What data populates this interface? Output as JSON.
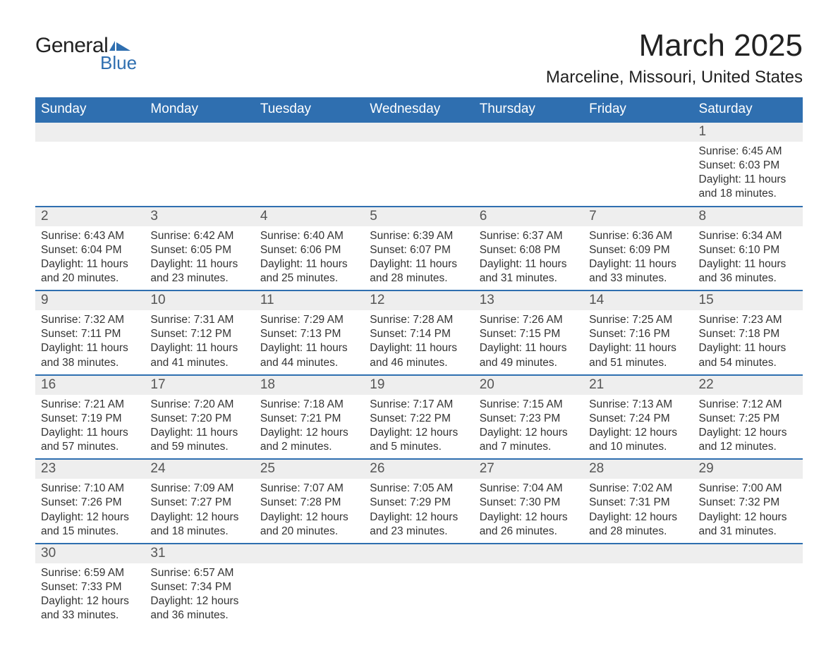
{
  "logo": {
    "text1": "General",
    "text2": "Blue",
    "flag_color": "#2f6fb0"
  },
  "title": "March 2025",
  "location": "Marceline, Missouri, United States",
  "weekday_headers": [
    "Sunday",
    "Monday",
    "Tuesday",
    "Wednesday",
    "Thursday",
    "Friday",
    "Saturday"
  ],
  "colors": {
    "header_bg": "#2f6fb0",
    "header_text": "#ffffff",
    "daynum_bg": "#eeeeee",
    "row_border": "#2f6fb0",
    "body_text": "#333333"
  },
  "weeks": [
    [
      {
        "empty": true
      },
      {
        "empty": true
      },
      {
        "empty": true
      },
      {
        "empty": true
      },
      {
        "empty": true
      },
      {
        "empty": true
      },
      {
        "day": "1",
        "sunrise": "Sunrise: 6:45 AM",
        "sunset": "Sunset: 6:03 PM",
        "daylight1": "Daylight: 11 hours",
        "daylight2": "and 18 minutes."
      }
    ],
    [
      {
        "day": "2",
        "sunrise": "Sunrise: 6:43 AM",
        "sunset": "Sunset: 6:04 PM",
        "daylight1": "Daylight: 11 hours",
        "daylight2": "and 20 minutes."
      },
      {
        "day": "3",
        "sunrise": "Sunrise: 6:42 AM",
        "sunset": "Sunset: 6:05 PM",
        "daylight1": "Daylight: 11 hours",
        "daylight2": "and 23 minutes."
      },
      {
        "day": "4",
        "sunrise": "Sunrise: 6:40 AM",
        "sunset": "Sunset: 6:06 PM",
        "daylight1": "Daylight: 11 hours",
        "daylight2": "and 25 minutes."
      },
      {
        "day": "5",
        "sunrise": "Sunrise: 6:39 AM",
        "sunset": "Sunset: 6:07 PM",
        "daylight1": "Daylight: 11 hours",
        "daylight2": "and 28 minutes."
      },
      {
        "day": "6",
        "sunrise": "Sunrise: 6:37 AM",
        "sunset": "Sunset: 6:08 PM",
        "daylight1": "Daylight: 11 hours",
        "daylight2": "and 31 minutes."
      },
      {
        "day": "7",
        "sunrise": "Sunrise: 6:36 AM",
        "sunset": "Sunset: 6:09 PM",
        "daylight1": "Daylight: 11 hours",
        "daylight2": "and 33 minutes."
      },
      {
        "day": "8",
        "sunrise": "Sunrise: 6:34 AM",
        "sunset": "Sunset: 6:10 PM",
        "daylight1": "Daylight: 11 hours",
        "daylight2": "and 36 minutes."
      }
    ],
    [
      {
        "day": "9",
        "sunrise": "Sunrise: 7:32 AM",
        "sunset": "Sunset: 7:11 PM",
        "daylight1": "Daylight: 11 hours",
        "daylight2": "and 38 minutes."
      },
      {
        "day": "10",
        "sunrise": "Sunrise: 7:31 AM",
        "sunset": "Sunset: 7:12 PM",
        "daylight1": "Daylight: 11 hours",
        "daylight2": "and 41 minutes."
      },
      {
        "day": "11",
        "sunrise": "Sunrise: 7:29 AM",
        "sunset": "Sunset: 7:13 PM",
        "daylight1": "Daylight: 11 hours",
        "daylight2": "and 44 minutes."
      },
      {
        "day": "12",
        "sunrise": "Sunrise: 7:28 AM",
        "sunset": "Sunset: 7:14 PM",
        "daylight1": "Daylight: 11 hours",
        "daylight2": "and 46 minutes."
      },
      {
        "day": "13",
        "sunrise": "Sunrise: 7:26 AM",
        "sunset": "Sunset: 7:15 PM",
        "daylight1": "Daylight: 11 hours",
        "daylight2": "and 49 minutes."
      },
      {
        "day": "14",
        "sunrise": "Sunrise: 7:25 AM",
        "sunset": "Sunset: 7:16 PM",
        "daylight1": "Daylight: 11 hours",
        "daylight2": "and 51 minutes."
      },
      {
        "day": "15",
        "sunrise": "Sunrise: 7:23 AM",
        "sunset": "Sunset: 7:18 PM",
        "daylight1": "Daylight: 11 hours",
        "daylight2": "and 54 minutes."
      }
    ],
    [
      {
        "day": "16",
        "sunrise": "Sunrise: 7:21 AM",
        "sunset": "Sunset: 7:19 PM",
        "daylight1": "Daylight: 11 hours",
        "daylight2": "and 57 minutes."
      },
      {
        "day": "17",
        "sunrise": "Sunrise: 7:20 AM",
        "sunset": "Sunset: 7:20 PM",
        "daylight1": "Daylight: 11 hours",
        "daylight2": "and 59 minutes."
      },
      {
        "day": "18",
        "sunrise": "Sunrise: 7:18 AM",
        "sunset": "Sunset: 7:21 PM",
        "daylight1": "Daylight: 12 hours",
        "daylight2": "and 2 minutes."
      },
      {
        "day": "19",
        "sunrise": "Sunrise: 7:17 AM",
        "sunset": "Sunset: 7:22 PM",
        "daylight1": "Daylight: 12 hours",
        "daylight2": "and 5 minutes."
      },
      {
        "day": "20",
        "sunrise": "Sunrise: 7:15 AM",
        "sunset": "Sunset: 7:23 PM",
        "daylight1": "Daylight: 12 hours",
        "daylight2": "and 7 minutes."
      },
      {
        "day": "21",
        "sunrise": "Sunrise: 7:13 AM",
        "sunset": "Sunset: 7:24 PM",
        "daylight1": "Daylight: 12 hours",
        "daylight2": "and 10 minutes."
      },
      {
        "day": "22",
        "sunrise": "Sunrise: 7:12 AM",
        "sunset": "Sunset: 7:25 PM",
        "daylight1": "Daylight: 12 hours",
        "daylight2": "and 12 minutes."
      }
    ],
    [
      {
        "day": "23",
        "sunrise": "Sunrise: 7:10 AM",
        "sunset": "Sunset: 7:26 PM",
        "daylight1": "Daylight: 12 hours",
        "daylight2": "and 15 minutes."
      },
      {
        "day": "24",
        "sunrise": "Sunrise: 7:09 AM",
        "sunset": "Sunset: 7:27 PM",
        "daylight1": "Daylight: 12 hours",
        "daylight2": "and 18 minutes."
      },
      {
        "day": "25",
        "sunrise": "Sunrise: 7:07 AM",
        "sunset": "Sunset: 7:28 PM",
        "daylight1": "Daylight: 12 hours",
        "daylight2": "and 20 minutes."
      },
      {
        "day": "26",
        "sunrise": "Sunrise: 7:05 AM",
        "sunset": "Sunset: 7:29 PM",
        "daylight1": "Daylight: 12 hours",
        "daylight2": "and 23 minutes."
      },
      {
        "day": "27",
        "sunrise": "Sunrise: 7:04 AM",
        "sunset": "Sunset: 7:30 PM",
        "daylight1": "Daylight: 12 hours",
        "daylight2": "and 26 minutes."
      },
      {
        "day": "28",
        "sunrise": "Sunrise: 7:02 AM",
        "sunset": "Sunset: 7:31 PM",
        "daylight1": "Daylight: 12 hours",
        "daylight2": "and 28 minutes."
      },
      {
        "day": "29",
        "sunrise": "Sunrise: 7:00 AM",
        "sunset": "Sunset: 7:32 PM",
        "daylight1": "Daylight: 12 hours",
        "daylight2": "and 31 minutes."
      }
    ],
    [
      {
        "day": "30",
        "sunrise": "Sunrise: 6:59 AM",
        "sunset": "Sunset: 7:33 PM",
        "daylight1": "Daylight: 12 hours",
        "daylight2": "and 33 minutes."
      },
      {
        "day": "31",
        "sunrise": "Sunrise: 6:57 AM",
        "sunset": "Sunset: 7:34 PM",
        "daylight1": "Daylight: 12 hours",
        "daylight2": "and 36 minutes."
      },
      {
        "empty": true
      },
      {
        "empty": true
      },
      {
        "empty": true
      },
      {
        "empty": true
      },
      {
        "empty": true
      }
    ]
  ]
}
